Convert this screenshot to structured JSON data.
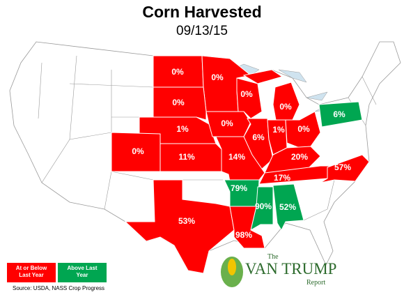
{
  "title": "Corn Harvested",
  "subtitle": "09/13/15",
  "regions": {
    "values": [
      0,
      0,
      0,
      0,
      0,
      1,
      0,
      6,
      1,
      0,
      6,
      0,
      11,
      14,
      20,
      17,
      57,
      79,
      90,
      52,
      53,
      98
    ],
    "value_labels": [
      "0%",
      "0%",
      "0%",
      "0%",
      "0%",
      "1%",
      "0%",
      "6%",
      "1%",
      "0%",
      "6%",
      "0%",
      "11%",
      "14%",
      "20%",
      "17%",
      "57%",
      "79%",
      "90%",
      "52%",
      "53%",
      "98%"
    ],
    "colors": [
      "#ff0000",
      "#ff0000",
      "#ff0000",
      "#ff0000",
      "#ff0000",
      "#ff0000",
      "#ff0000",
      "#ff0000",
      "#ff0000",
      "#ff0000",
      "#00a651",
      "#ff0000",
      "#ff0000",
      "#ff0000",
      "#ff0000",
      "#ff0000",
      "#ff0000",
      "#00a651",
      "#00a651",
      "#00a651",
      "#ff0000",
      "#ff0000"
    ]
  },
  "legend": {
    "items": [
      {
        "label": "At or Below Last Year",
        "color": "#ff0000"
      },
      {
        "label": "Above Last Year",
        "color": "#00a651"
      }
    ]
  },
  "source": "Source: USDA, NASS Crop Progress",
  "logo": {
    "the": "The",
    "name": "VAN TRUMP",
    "sub": "Report"
  }
}
